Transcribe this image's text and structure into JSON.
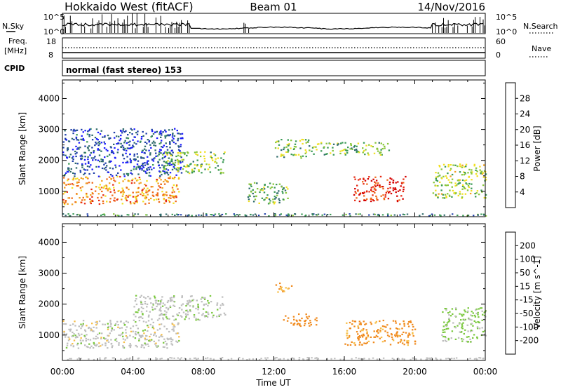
{
  "header": {
    "site": "Hokkaido West (fitACF)",
    "beam": "Beam 01",
    "date": "14/Nov/2016"
  },
  "top_panels": {
    "nsky_label": "N.Sky",
    "nsearch_label": "N.Search",
    "noise_ticks": [
      "10^5",
      "10^0"
    ],
    "freq_label_1": "Freq.",
    "freq_label_2": "[MHz]",
    "freq_ticks": [
      "18",
      "8"
    ],
    "nave_label": "Nave",
    "nave_ticks": [
      "60",
      "0"
    ],
    "cpid_label": "CPID",
    "cpid_text": "normal (fast stereo) 153"
  },
  "colors": {
    "power": [
      "#1a1aff",
      "#1f3fa8",
      "#2e6a6a",
      "#3a9a55",
      "#88c63a",
      "#f2e020",
      "#f0a020",
      "#ef6a18",
      "#e62a12",
      "#d40000"
    ],
    "velocity": [
      "#d40000",
      "#e8501a",
      "#f08a1e",
      "#f7c04a",
      "#bebebe",
      "#7ac83e",
      "#3a8a4e",
      "#2a6aa0",
      "#1a2aa0"
    ]
  },
  "chart_data": [
    {
      "type": "heatmap",
      "name": "power",
      "ylabel": "Slant Range [km]",
      "y_ticks": [
        1000,
        2000,
        3000,
        4000
      ],
      "ylim": [
        180,
        4600
      ],
      "x_ticks": [
        "00:00",
        "04:00",
        "08:00",
        "12:00",
        "16:00",
        "20:00",
        "00:00"
      ],
      "xlim_hours": [
        0,
        24
      ],
      "colorbar": {
        "label": "Power [dB]",
        "ticks": [
          "4",
          "8",
          "12",
          "16",
          "20",
          "24",
          "28"
        ],
        "range": [
          0,
          32
        ]
      },
      "echo_regions": [
        {
          "t0": 0.0,
          "t1": 6.6,
          "r0": 600,
          "r1": 1500,
          "level": 22
        },
        {
          "t0": 0.0,
          "t1": 6.8,
          "r0": 1500,
          "r1": 3050,
          "level": 5
        },
        {
          "t0": 5.5,
          "t1": 9.2,
          "r0": 1600,
          "r1": 2300,
          "level": 14
        },
        {
          "t0": 10.5,
          "t1": 12.8,
          "r0": 600,
          "r1": 1300,
          "level": 12
        },
        {
          "t0": 12.0,
          "t1": 14.0,
          "r0": 2100,
          "r1": 2700,
          "level": 14
        },
        {
          "t0": 14.0,
          "t1": 18.5,
          "r0": 2200,
          "r1": 2600,
          "level": 13
        },
        {
          "t0": 16.5,
          "t1": 19.5,
          "r0": 700,
          "r1": 1500,
          "level": 28
        },
        {
          "t0": 21.0,
          "t1": 24.0,
          "r0": 800,
          "r1": 1900,
          "level": 15
        }
      ]
    },
    {
      "type": "heatmap",
      "name": "velocity",
      "ylabel": "Slant Range [km]",
      "y_ticks": [
        1000,
        2000,
        3000,
        4000
      ],
      "ylim": [
        180,
        4600
      ],
      "x_ticks": [
        "00:00",
        "04:00",
        "08:00",
        "12:00",
        "16:00",
        "20:00",
        "00:00"
      ],
      "xlim_hours": [
        0,
        24
      ],
      "xlabel": "Time UT",
      "colorbar": {
        "label": "Velocity [m s^-1]",
        "ticks": [
          "-200",
          "-100",
          "-50",
          "-15",
          "15",
          "50",
          "100",
          "200"
        ]
      },
      "echo_regions": [
        {
          "t0": 0.0,
          "t1": 6.6,
          "r0": 600,
          "r1": 1500,
          "level": 0
        },
        {
          "t0": 4.0,
          "t1": 9.2,
          "r0": 1500,
          "r1": 2300,
          "level": 5
        },
        {
          "t0": 12.0,
          "t1": 13.0,
          "r0": 2400,
          "r1": 2700,
          "level": -60
        },
        {
          "t0": 12.5,
          "t1": 14.5,
          "r0": 1300,
          "r1": 1700,
          "level": -70
        },
        {
          "t0": 16.0,
          "t1": 20.0,
          "r0": 700,
          "r1": 1500,
          "level": -60
        },
        {
          "t0": 21.5,
          "t1": 24.0,
          "r0": 800,
          "r1": 1900,
          "level": 20
        }
      ]
    }
  ]
}
